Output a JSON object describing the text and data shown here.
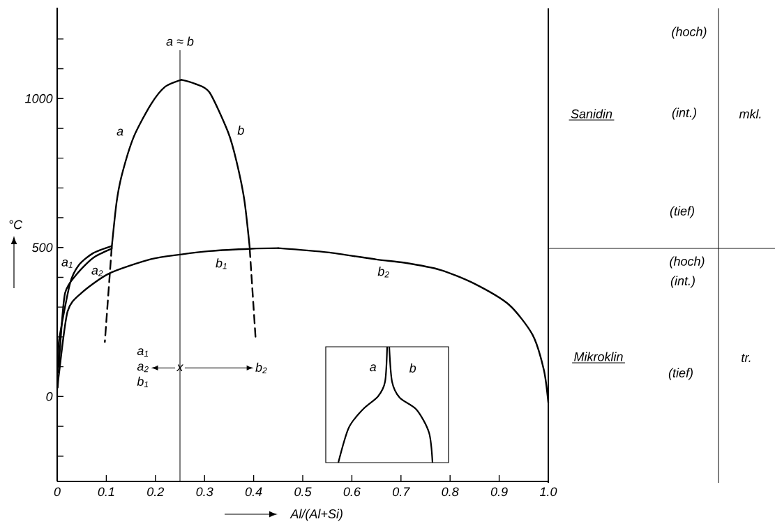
{
  "chart_data": [
    {
      "type": "line",
      "xlabel": "Al/(Al+Si)",
      "ylabel": "°C",
      "xlim": [
        0,
        1
      ],
      "ylim": [
        -285,
        1305
      ],
      "xticks": [
        0,
        0.1,
        0.2,
        0.3,
        0.4,
        0.5,
        0.6,
        0.7,
        0.8,
        0.9,
        {
          "value": 1,
          "label": "1.0"
        }
      ],
      "yticks": [
        {
          "value": -200,
          "label": null
        },
        {
          "value": -100,
          "label": null
        },
        0,
        {
          "value": 100,
          "label": null
        },
        {
          "value": 200,
          "label": null
        },
        {
          "value": 300,
          "label": null
        },
        {
          "value": 400,
          "label": null
        },
        500,
        {
          "value": 600,
          "label": null
        },
        {
          "value": 700,
          "label": null
        },
        {
          "value": 800,
          "label": null
        },
        {
          "value": 900,
          "label": null
        },
        1000,
        {
          "value": 1100,
          "label": null
        },
        {
          "value": 1200,
          "label": null
        }
      ],
      "series": [
        {
          "color": "#000000",
          "x": [
            0.111,
            0.121,
            0.132,
            0.156,
            0.191,
            0.22,
            0.253
          ],
          "values": [
            500,
            653,
            746,
            872,
            981,
            1040,
            1063
          ]
        },
        {
          "color": "#000000",
          "x": [
            0.253,
            0.28,
            0.31,
            0.348,
            0.365,
            0.381,
            0.392
          ],
          "values": [
            1063,
            1050,
            1021,
            887,
            790,
            660,
            500
          ]
        },
        {
          "color": "#000000",
          "x": [
            0.002,
            0.004,
            0.026,
            0.044,
            0.073,
            0.111
          ],
          "values": [
            100,
            191,
            379,
            441,
            481,
            505
          ]
        },
        {
          "color": "#000000",
          "x": [
            0.003,
            0.006,
            0.016,
            0.04,
            0.073,
            0.111
          ],
          "values": [
            80,
            170,
            347,
            411,
            465,
            496
          ]
        },
        {
          "color": "#000000",
          "x": [
            0.001,
            0.004,
            0.021,
            0.049,
            0.106,
            0.191,
            0.253,
            0.31,
            0.395,
            0.45
          ],
          "values": [
            30,
            82,
            285,
            347,
            413,
            461,
            477,
            488,
            496,
            498
          ]
        },
        {
          "color": "#000000",
          "x": [
            0.45,
            0.55,
            0.65,
            0.707,
            0.78,
            0.849,
            0.92,
            0.968,
            0.991,
            1.0
          ],
          "values": [
            498,
            484,
            460,
            449,
            425,
            379,
            308,
            207,
            89,
            -20
          ]
        },
        {
          "color": "#000000",
          "line_style": "dashed",
          "x": [
            0.111,
            0.097
          ],
          "values": [
            500,
            183
          ]
        },
        {
          "color": "#000000",
          "line_style": "dashed",
          "x": [
            0.392,
            0.404
          ],
          "values": [
            496,
            195
          ]
        }
      ],
      "ref_lines": [
        {
          "axis": "x",
          "value": 0.25,
          "label": "a ≈ b"
        }
      ],
      "annotations": [
        "a",
        "b",
        "a$_{1}$",
        "a$_{2}$",
        "b$_{1}$",
        "b$_{2}$",
        "a$_{1}$",
        "a$_{2}$",
        "b$_{1}$",
        "x",
        "b$_{2}$",
        "a",
        "b"
      ]
    },
    {
      "type": "other",
      "annotations": [
        "Sanidin",
        "Mikroklin",
        "(hoch)",
        "(int.)",
        "(tief)",
        "(hoch)",
        "(int.)",
        "(tief)",
        "mkl.",
        "tr."
      ]
    }
  ]
}
